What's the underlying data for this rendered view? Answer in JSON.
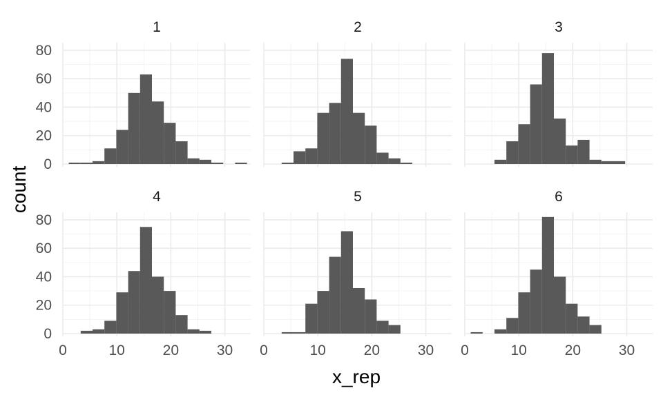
{
  "chart_data": {
    "type": "bar",
    "subtype": "faceted-histogram",
    "xlabel": "x_rep",
    "ylabel": "count",
    "xlim": [
      0,
      35
    ],
    "ylim": [
      0,
      85
    ],
    "x_ticks": [
      0,
      10,
      20,
      30
    ],
    "x_tick_labels": [
      "0",
      "10",
      "20",
      "30"
    ],
    "y_ticks": [
      0,
      20,
      40,
      60,
      80
    ],
    "y_tick_labels": [
      "0",
      "20",
      "40",
      "60",
      "80"
    ],
    "grid": true,
    "bar_color": "#595959",
    "bin_width": 2.2,
    "facets": [
      {
        "label": "1",
        "bins": [
          {
            "x0": 1.1,
            "count": 1
          },
          {
            "x0": 3.3,
            "count": 1
          },
          {
            "x0": 5.5,
            "count": 2
          },
          {
            "x0": 7.7,
            "count": 11
          },
          {
            "x0": 9.9,
            "count": 24
          },
          {
            "x0": 12.1,
            "count": 50
          },
          {
            "x0": 14.3,
            "count": 63
          },
          {
            "x0": 16.5,
            "count": 44
          },
          {
            "x0": 18.7,
            "count": 29
          },
          {
            "x0": 20.9,
            "count": 16
          },
          {
            "x0": 23.1,
            "count": 4
          },
          {
            "x0": 25.3,
            "count": 3
          },
          {
            "x0": 27.5,
            "count": 1
          },
          {
            "x0": 31.9,
            "count": 1
          }
        ]
      },
      {
        "label": "2",
        "bins": [
          {
            "x0": 3.3,
            "count": 1
          },
          {
            "x0": 5.5,
            "count": 9
          },
          {
            "x0": 7.7,
            "count": 11
          },
          {
            "x0": 9.9,
            "count": 36
          },
          {
            "x0": 12.1,
            "count": 43
          },
          {
            "x0": 14.3,
            "count": 74
          },
          {
            "x0": 16.5,
            "count": 36
          },
          {
            "x0": 18.7,
            "count": 27
          },
          {
            "x0": 20.9,
            "count": 8
          },
          {
            "x0": 23.1,
            "count": 4
          },
          {
            "x0": 25.3,
            "count": 1
          }
        ]
      },
      {
        "label": "3",
        "bins": [
          {
            "x0": 5.5,
            "count": 3
          },
          {
            "x0": 7.7,
            "count": 16
          },
          {
            "x0": 9.9,
            "count": 28
          },
          {
            "x0": 12.1,
            "count": 56
          },
          {
            "x0": 14.3,
            "count": 78
          },
          {
            "x0": 16.5,
            "count": 32
          },
          {
            "x0": 18.7,
            "count": 13
          },
          {
            "x0": 20.9,
            "count": 17
          },
          {
            "x0": 23.1,
            "count": 3
          },
          {
            "x0": 25.3,
            "count": 2
          },
          {
            "x0": 27.5,
            "count": 2
          }
        ]
      },
      {
        "label": "4",
        "bins": [
          {
            "x0": 3.3,
            "count": 2
          },
          {
            "x0": 5.5,
            "count": 3
          },
          {
            "x0": 7.7,
            "count": 9
          },
          {
            "x0": 9.9,
            "count": 29
          },
          {
            "x0": 12.1,
            "count": 44
          },
          {
            "x0": 14.3,
            "count": 75
          },
          {
            "x0": 16.5,
            "count": 40
          },
          {
            "x0": 18.7,
            "count": 30
          },
          {
            "x0": 20.9,
            "count": 13
          },
          {
            "x0": 23.1,
            "count": 3
          },
          {
            "x0": 25.3,
            "count": 2
          }
        ]
      },
      {
        "label": "5",
        "bins": [
          {
            "x0": 3.3,
            "count": 1
          },
          {
            "x0": 5.5,
            "count": 1
          },
          {
            "x0": 7.7,
            "count": 21
          },
          {
            "x0": 9.9,
            "count": 30
          },
          {
            "x0": 12.1,
            "count": 54
          },
          {
            "x0": 14.3,
            "count": 72
          },
          {
            "x0": 16.5,
            "count": 32
          },
          {
            "x0": 18.7,
            "count": 24
          },
          {
            "x0": 20.9,
            "count": 9
          },
          {
            "x0": 23.1,
            "count": 6
          }
        ]
      },
      {
        "label": "6",
        "bins": [
          {
            "x0": 1.1,
            "count": 1
          },
          {
            "x0": 5.5,
            "count": 3
          },
          {
            "x0": 7.7,
            "count": 11
          },
          {
            "x0": 9.9,
            "count": 29
          },
          {
            "x0": 12.1,
            "count": 45
          },
          {
            "x0": 14.3,
            "count": 82
          },
          {
            "x0": 16.5,
            "count": 40
          },
          {
            "x0": 18.7,
            "count": 21
          },
          {
            "x0": 20.9,
            "count": 12
          },
          {
            "x0": 23.1,
            "count": 6
          }
        ]
      }
    ]
  }
}
